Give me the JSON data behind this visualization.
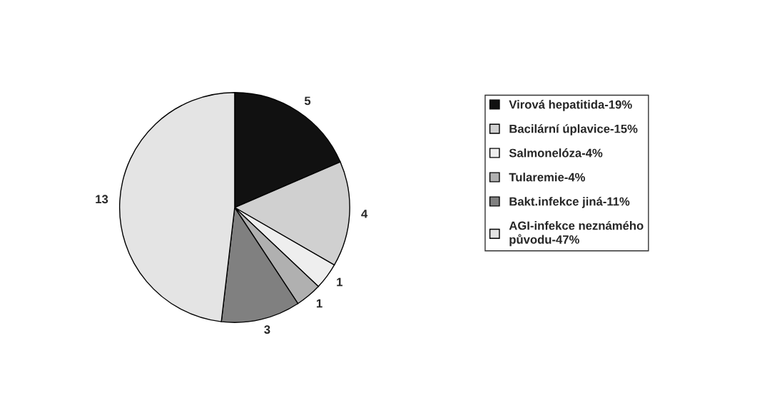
{
  "chart_data": {
    "type": "pie",
    "categories": [
      "Virová hepatitida-19%",
      "Bacilární úplavice-15%",
      "Salmonelóza-4%",
      "Tularemie-4%",
      "Bakt.infekce jiná-11%",
      "AGI-infekce neznámého\npůvodu-47%"
    ],
    "values": [
      5,
      4,
      1,
      1,
      3,
      13
    ],
    "colors": [
      "#111111",
      "#d0d0d0",
      "#eeeeee",
      "#b0b0b0",
      "#808080",
      "#e4e4e4"
    ],
    "data_labels": true,
    "legend": "right"
  }
}
